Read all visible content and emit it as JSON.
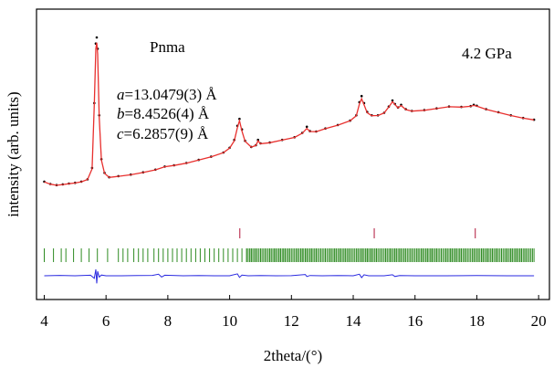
{
  "chart_data": {
    "type": "line",
    "title": "",
    "xlabel": "2theta/(°)",
    "ylabel": "intensity (arb. units)",
    "xlim": [
      3.75,
      20.35
    ],
    "ylim": [
      0,
      1
    ],
    "xticks": [
      4,
      6,
      8,
      10,
      12,
      14,
      16,
      18,
      20
    ],
    "grid": false,
    "legend": "none",
    "annotations": {
      "space_group": "Pnma",
      "pressure": "4.2 GPa",
      "lattice": [
        {
          "param": "a",
          "value": "=13.0479(3) Å"
        },
        {
          "param": "b",
          "value": "=8.4526(4) Å"
        },
        {
          "param": "c",
          "value": "=6.2857(9) Å"
        }
      ]
    },
    "series": [
      {
        "role": "observed",
        "marker": "dot",
        "color": "#000000",
        "x": [
          4.0,
          4.2,
          4.4,
          4.6,
          4.8,
          5.0,
          5.2,
          5.4,
          5.55,
          5.62,
          5.67,
          5.7,
          5.73,
          5.78,
          5.85,
          5.95,
          6.1,
          6.4,
          6.8,
          7.2,
          7.6,
          7.9,
          8.2,
          8.6,
          9.0,
          9.4,
          9.8,
          10.0,
          10.15,
          10.25,
          10.32,
          10.4,
          10.5,
          10.7,
          10.85,
          10.92,
          11.0,
          11.3,
          11.7,
          12.1,
          12.35,
          12.5,
          12.6,
          12.8,
          13.1,
          13.5,
          13.9,
          14.1,
          14.2,
          14.27,
          14.35,
          14.45,
          14.6,
          14.8,
          15.0,
          15.15,
          15.27,
          15.35,
          15.45,
          15.55,
          15.7,
          15.9,
          16.3,
          16.7,
          17.1,
          17.5,
          17.8,
          17.9,
          18.0,
          18.3,
          18.7,
          19.1,
          19.5,
          19.85
        ],
        "y": [
          0.172,
          0.158,
          0.152,
          0.156,
          0.161,
          0.165,
          0.172,
          0.185,
          0.25,
          0.62,
          0.96,
          0.995,
          0.93,
          0.55,
          0.3,
          0.222,
          0.197,
          0.203,
          0.212,
          0.225,
          0.24,
          0.258,
          0.265,
          0.278,
          0.296,
          0.314,
          0.338,
          0.365,
          0.41,
          0.49,
          0.53,
          0.47,
          0.405,
          0.37,
          0.38,
          0.41,
          0.39,
          0.395,
          0.41,
          0.425,
          0.45,
          0.485,
          0.46,
          0.458,
          0.475,
          0.495,
          0.52,
          0.55,
          0.625,
          0.66,
          0.62,
          0.57,
          0.55,
          0.55,
          0.565,
          0.6,
          0.635,
          0.615,
          0.595,
          0.61,
          0.585,
          0.575,
          0.58,
          0.59,
          0.6,
          0.598,
          0.603,
          0.61,
          0.605,
          0.585,
          0.568,
          0.55,
          0.535,
          0.525
        ]
      },
      {
        "role": "calculated",
        "marker": "line",
        "color": "#e8302e",
        "x": [
          4.0,
          4.2,
          4.4,
          4.6,
          4.8,
          5.0,
          5.2,
          5.4,
          5.55,
          5.62,
          5.67,
          5.7,
          5.73,
          5.78,
          5.85,
          5.95,
          6.1,
          6.4,
          6.8,
          7.2,
          7.6,
          7.9,
          8.2,
          8.6,
          9.0,
          9.4,
          9.8,
          10.0,
          10.15,
          10.25,
          10.32,
          10.4,
          10.5,
          10.7,
          10.85,
          10.92,
          11.0,
          11.3,
          11.7,
          12.1,
          12.35,
          12.5,
          12.6,
          12.8,
          13.1,
          13.5,
          13.9,
          14.1,
          14.2,
          14.27,
          14.35,
          14.45,
          14.6,
          14.8,
          15.0,
          15.15,
          15.27,
          15.35,
          15.45,
          15.55,
          15.7,
          15.9,
          16.3,
          16.7,
          17.1,
          17.5,
          17.8,
          17.9,
          18.0,
          18.3,
          18.7,
          19.1,
          19.5,
          19.85
        ],
        "y": [
          0.17,
          0.157,
          0.151,
          0.155,
          0.16,
          0.164,
          0.171,
          0.184,
          0.245,
          0.61,
          0.93,
          0.965,
          0.9,
          0.54,
          0.295,
          0.22,
          0.196,
          0.202,
          0.211,
          0.224,
          0.239,
          0.257,
          0.264,
          0.277,
          0.295,
          0.313,
          0.337,
          0.363,
          0.405,
          0.48,
          0.52,
          0.46,
          0.402,
          0.369,
          0.378,
          0.405,
          0.388,
          0.394,
          0.409,
          0.424,
          0.448,
          0.475,
          0.458,
          0.457,
          0.474,
          0.494,
          0.519,
          0.548,
          0.615,
          0.645,
          0.61,
          0.565,
          0.548,
          0.549,
          0.564,
          0.598,
          0.628,
          0.612,
          0.593,
          0.606,
          0.583,
          0.574,
          0.579,
          0.589,
          0.599,
          0.597,
          0.602,
          0.607,
          0.603,
          0.584,
          0.567,
          0.549,
          0.534,
          0.524
        ]
      },
      {
        "role": "difference",
        "marker": "line",
        "color": "#2a2ae0",
        "baseline": -0.5,
        "x": [
          4.0,
          4.5,
          5.0,
          5.5,
          5.62,
          5.67,
          5.7,
          5.73,
          5.78,
          5.85,
          6.0,
          6.5,
          7.0,
          7.5,
          7.7,
          7.8,
          7.9,
          8.5,
          9.0,
          9.5,
          10.0,
          10.25,
          10.32,
          10.4,
          10.6,
          11.0,
          11.5,
          12.0,
          12.45,
          12.5,
          12.6,
          13.0,
          13.5,
          14.0,
          14.2,
          14.27,
          14.35,
          14.5,
          15.0,
          15.27,
          15.35,
          15.5,
          16.0,
          17.0,
          18.0,
          19.0,
          19.85
        ],
        "y": [
          0.0,
          0.003,
          0.0,
          0.004,
          -0.02,
          0.05,
          -0.06,
          0.035,
          -0.01,
          0.006,
          0.0,
          0.0,
          0.002,
          0.003,
          0.012,
          -0.01,
          0.004,
          0.0,
          0.002,
          0.0,
          0.0,
          0.015,
          -0.012,
          0.005,
          0.0,
          0.002,
          0.0,
          0.001,
          0.01,
          -0.006,
          0.002,
          0.0,
          0.002,
          0.0,
          0.012,
          -0.014,
          0.008,
          0.0,
          0.0,
          0.008,
          -0.006,
          0.002,
          0.0,
          0.0,
          0.002,
          0.0,
          0.0
        ]
      }
    ],
    "reflections": {
      "pressure_medium": {
        "color": "#b0153a",
        "positions": [
          10.33,
          14.68,
          17.95
        ]
      },
      "sample": {
        "color": "#2e8b22",
        "positions": [
          4.0,
          4.3,
          4.55,
          4.7,
          4.95,
          5.2,
          5.45,
          5.72,
          6.05,
          6.4,
          6.55,
          6.7,
          6.9,
          7.05,
          7.2,
          7.35,
          7.55,
          7.7,
          7.85,
          8.0,
          8.15,
          8.3,
          8.45,
          8.6,
          8.75,
          8.9,
          9.05,
          9.2,
          9.35,
          9.5,
          9.65,
          9.8,
          9.95,
          10.1,
          10.25,
          10.4,
          10.55,
          10.7,
          10.85,
          11.0,
          11.15,
          11.3,
          11.45,
          11.6,
          11.75,
          11.9,
          12.05,
          12.2,
          12.35,
          12.5,
          12.65,
          12.8,
          12.95,
          13.1,
          13.25,
          13.4,
          13.55,
          13.7,
          13.85,
          14.0,
          14.15,
          14.3,
          14.45,
          14.6,
          14.75,
          14.9,
          15.05,
          15.2,
          15.35,
          15.5,
          15.65,
          15.8,
          15.95,
          16.1,
          16.25,
          16.4,
          16.55,
          16.7,
          16.85,
          17.0,
          17.15,
          17.3,
          17.45,
          17.6,
          17.75,
          17.9,
          18.05,
          18.2,
          18.35,
          18.5,
          18.65,
          18.8,
          18.95,
          19.1,
          19.25,
          19.4,
          19.55,
          19.7,
          19.85
        ],
        "dense_start": 10.55
      }
    }
  }
}
